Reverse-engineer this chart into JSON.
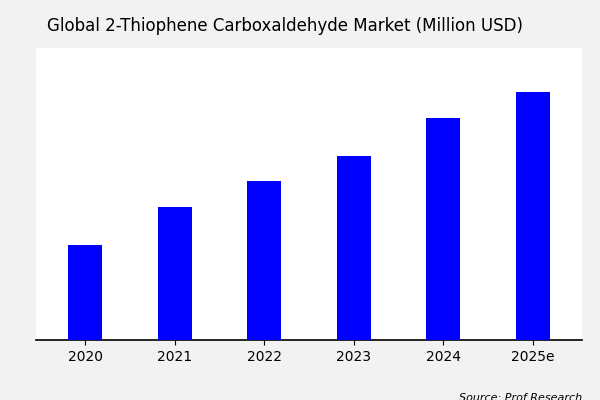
{
  "title": "Global 2-Thiophene Carboxaldehyde Market (Million USD)",
  "categories": [
    "2020",
    "2021",
    "2022",
    "2023",
    "2024",
    "2025e"
  ],
  "values": [
    30,
    42,
    50,
    58,
    70,
    78
  ],
  "bar_color": "#0000ff",
  "plot_bg_color": "#ffffff",
  "fig_bg_color": "#f2f2f2",
  "source_text": "Source: Prof Research",
  "title_fontsize": 12,
  "tick_fontsize": 10,
  "source_fontsize": 8,
  "ylim": [
    0,
    92
  ],
  "bar_width": 0.38,
  "figsize": [
    6.0,
    4.0
  ],
  "dpi": 100
}
